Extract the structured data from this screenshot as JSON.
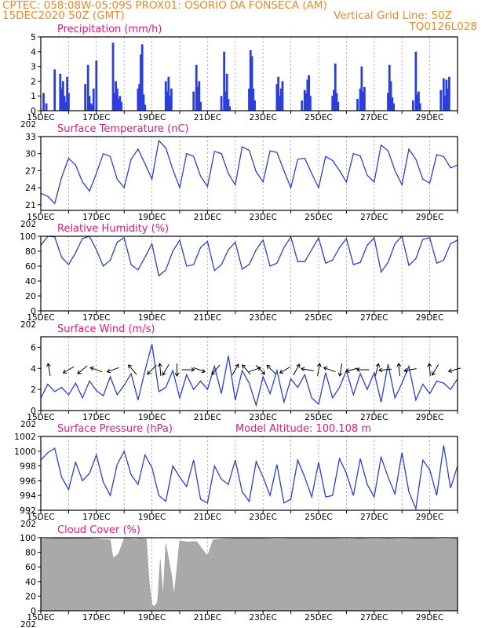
{
  "header": {
    "line1": "CPTEC:   058:08W-05:09S   PROX01: OSORIO DA FONSECA (AM)",
    "line2": "15DEC2020 50Z (GMT)",
    "grid_note": "Vertical Grid Line: 50Z",
    "code": "TQ0126L028"
  },
  "colors": {
    "title": "#e6197c",
    "header": "#f08a24",
    "series": "#2b3fe0",
    "cloud": "#a9a9a9"
  },
  "x_axis": {
    "start": "15DEC2020",
    "end": "30DEC2020",
    "ticks": [
      {
        "day": 0,
        "label": "15DEC"
      },
      {
        "day": 2,
        "label": "17DEC"
      },
      {
        "day": 4,
        "label": "19DEC"
      },
      {
        "day": 6,
        "label": "21DEC"
      },
      {
        "day": 8,
        "label": "23DEC"
      },
      {
        "day": 10,
        "label": "25DEC"
      },
      {
        "day": 12,
        "label": "27DEC"
      },
      {
        "day": 14,
        "label": "29DEC"
      }
    ],
    "year_fragment": "202"
  },
  "chart_data": [
    {
      "id": "precip",
      "type": "bar",
      "title": "Precipitation (mm/h)",
      "ylim": [
        0,
        5
      ],
      "yticks": [
        0,
        1,
        2,
        3,
        4,
        5
      ],
      "x": [
        0.1,
        0.2,
        0.5,
        0.7,
        0.75,
        0.8,
        0.85,
        0.9,
        0.95,
        1.0,
        1.6,
        1.7,
        1.75,
        1.8,
        1.85,
        1.9,
        2.0,
        2.6,
        2.65,
        2.7,
        2.75,
        2.8,
        2.85,
        2.9,
        3.5,
        3.55,
        3.6,
        3.65,
        3.7,
        3.75,
        4.5,
        4.55,
        4.6,
        4.65,
        4.7,
        5.5,
        5.6,
        5.65,
        5.7,
        5.75,
        6.5,
        6.6,
        6.65,
        6.7,
        6.75,
        6.8,
        7.5,
        7.55,
        7.6,
        7.65,
        7.7,
        8.5,
        8.55,
        8.6,
        8.65,
        8.7,
        9.4,
        9.5,
        9.55,
        9.6,
        9.65,
        9.7,
        10.5,
        10.55,
        10.6,
        10.65,
        10.7,
        11.4,
        11.5,
        11.55,
        11.6,
        11.65,
        12.5,
        12.55,
        12.6,
        12.65,
        12.7,
        13.4,
        13.5,
        13.55,
        13.6,
        13.65,
        14.4,
        14.5,
        14.55,
        14.6,
        14.65,
        14.7
      ],
      "values": [
        1.2,
        0.5,
        2.8,
        2.5,
        1.5,
        2.0,
        1.0,
        0.6,
        2.3,
        1.2,
        1.8,
        3.1,
        1.0,
        0.5,
        0.4,
        1.5,
        3.4,
        4.6,
        1.2,
        2.0,
        1.5,
        0.8,
        1.0,
        0.6,
        1.5,
        1.8,
        3.8,
        4.5,
        1.1,
        0.4,
        2.0,
        1.3,
        2.3,
        1.0,
        1.5,
        1.3,
        3.1,
        1.6,
        2.0,
        0.6,
        1.0,
        4.0,
        1.3,
        2.5,
        0.8,
        0.3,
        1.5,
        4.1,
        3.7,
        1.5,
        0.7,
        1.8,
        2.3,
        1.0,
        1.5,
        2.0,
        0.7,
        1.4,
        1.2,
        2.1,
        2.4,
        1.0,
        1.0,
        1.4,
        3.2,
        1.2,
        0.6,
        0.8,
        1.5,
        3.0,
        1.3,
        1.6,
        1.2,
        3.1,
        2.0,
        0.9,
        0.5,
        0.7,
        4.0,
        1.1,
        1.3,
        0.5,
        1.4,
        2.2,
        1.0,
        2.1,
        1.5,
        2.3
      ]
    },
    {
      "id": "temp",
      "type": "line",
      "title": "Surface Temperature (nC)",
      "ylim": [
        20,
        33
      ],
      "yticks": [
        21,
        24,
        27,
        30,
        33
      ],
      "x": [
        0,
        0.25,
        0.5,
        0.75,
        1,
        1.25,
        1.5,
        1.75,
        2,
        2.25,
        2.5,
        2.75,
        3,
        3.25,
        3.5,
        3.75,
        4,
        4.25,
        4.5,
        4.75,
        5,
        5.25,
        5.5,
        5.75,
        6,
        6.25,
        6.5,
        6.75,
        7,
        7.25,
        7.5,
        7.75,
        8,
        8.25,
        8.5,
        8.75,
        9,
        9.25,
        9.5,
        9.75,
        10,
        10.25,
        10.5,
        10.75,
        11,
        11.25,
        11.5,
        11.75,
        12,
        12.25,
        12.5,
        12.75,
        13,
        13.25,
        13.5,
        13.75,
        14,
        14.25,
        14.5,
        14.75,
        15
      ],
      "values": [
        23,
        22.5,
        21.2,
        25.8,
        29.2,
        28.0,
        25.0,
        23.4,
        26.5,
        30.0,
        29.5,
        25.5,
        24.0,
        29.0,
        30.8,
        28.2,
        25.5,
        32.3,
        31.0,
        27.2,
        24.0,
        30.0,
        29.5,
        26.0,
        24.2,
        30.4,
        30.0,
        26.5,
        24.5,
        31.2,
        30.6,
        26.8,
        25.0,
        30.5,
        30.2,
        27.0,
        24.0,
        29.0,
        29.2,
        26.5,
        24.0,
        29.5,
        28.8,
        27.0,
        25.0,
        30.0,
        29.6,
        26.2,
        25.0,
        31.5,
        30.5,
        27.0,
        24.5,
        30.8,
        29.0,
        25.5,
        24.8,
        29.8,
        29.5,
        27.5,
        28.0
      ]
    },
    {
      "id": "rh",
      "type": "line",
      "title": "Relative Humidity (%)",
      "ylim": [
        0,
        100
      ],
      "yticks": [
        0,
        20,
        40,
        60,
        80,
        100
      ],
      "x": [
        0,
        0.25,
        0.5,
        0.75,
        1,
        1.25,
        1.5,
        1.75,
        2,
        2.25,
        2.5,
        2.75,
        3,
        3.25,
        3.5,
        3.75,
        4,
        4.25,
        4.5,
        4.75,
        5,
        5.25,
        5.5,
        5.75,
        6,
        6.25,
        6.5,
        6.75,
        7,
        7.25,
        7.5,
        7.75,
        8,
        8.25,
        8.5,
        8.75,
        9,
        9.25,
        9.5,
        9.75,
        10,
        10.25,
        10.5,
        10.75,
        11,
        11.25,
        11.5,
        11.75,
        12,
        12.25,
        12.5,
        12.75,
        13,
        13.25,
        13.5,
        13.75,
        14,
        14.25,
        14.5,
        14.75,
        15
      ],
      "values": [
        88,
        100,
        99,
        72,
        62,
        78,
        97,
        100,
        82,
        60,
        68,
        92,
        98,
        62,
        55,
        72,
        90,
        47,
        55,
        80,
        95,
        60,
        62,
        85,
        93,
        54,
        62,
        82,
        92,
        56,
        62,
        82,
        95,
        60,
        64,
        85,
        99,
        66,
        66,
        82,
        98,
        64,
        68,
        85,
        97,
        62,
        65,
        88,
        98,
        52,
        65,
        90,
        100,
        61,
        70,
        96,
        98,
        64,
        68,
        90,
        95
      ]
    },
    {
      "id": "wind",
      "type": "line",
      "title": "Surface Wind (m/s)",
      "ylim": [
        0,
        7
      ],
      "yticks": [
        0,
        2,
        4,
        6
      ],
      "x": [
        0,
        0.25,
        0.5,
        0.75,
        1,
        1.25,
        1.5,
        1.75,
        2,
        2.25,
        2.5,
        2.75,
        3,
        3.25,
        3.5,
        3.75,
        4,
        4.25,
        4.5,
        4.75,
        5,
        5.25,
        5.5,
        5.75,
        6,
        6.25,
        6.5,
        6.75,
        7,
        7.25,
        7.5,
        7.75,
        8,
        8.25,
        8.5,
        8.75,
        9,
        9.25,
        9.5,
        9.75,
        10,
        10.25,
        10.5,
        10.75,
        11,
        11.25,
        11.5,
        11.75,
        12,
        12.25,
        12.5,
        12.75,
        13,
        13.25,
        13.5,
        13.75,
        14,
        14.25,
        14.5,
        14.75,
        15
      ],
      "values": [
        1.2,
        2.5,
        1.8,
        2.2,
        1.5,
        2.6,
        1.2,
        2.8,
        1.9,
        1.4,
        3.2,
        1.5,
        2.4,
        3.5,
        1.0,
        3.8,
        6.3,
        1.8,
        2.2,
        3.8,
        1.2,
        3.4,
        2.0,
        2.8,
        2.0,
        4.2,
        1.6,
        5.2,
        1.0,
        3.8,
        2.6,
        0.5,
        3.2,
        1.6,
        3.8,
        0.8,
        3.0,
        2.2,
        3.4,
        1.2,
        0.6,
        3.6,
        1.2,
        2.2,
        3.8,
        1.5,
        3.5,
        2.0,
        3.6,
        0.8,
        4.4,
        1.2,
        2.6,
        4.2,
        1.0,
        2.5,
        1.6,
        2.8,
        2.6,
        2.0,
        3.0
      ],
      "vectors": [
        [
          0.3,
          100
        ],
        [
          1.0,
          -150
        ],
        [
          1.5,
          -140
        ],
        [
          2.0,
          160
        ],
        [
          2.6,
          -160
        ],
        [
          3.3,
          130
        ],
        [
          4.0,
          -135
        ],
        [
          4.3,
          95
        ],
        [
          4.5,
          -120
        ],
        [
          4.9,
          -90
        ],
        [
          5.3,
          0
        ],
        [
          5.7,
          -20
        ],
        [
          6.3,
          -130
        ],
        [
          7.0,
          60
        ],
        [
          7.4,
          130
        ],
        [
          7.7,
          20
        ],
        [
          7.9,
          -45
        ],
        [
          8.3,
          135
        ],
        [
          8.8,
          -150
        ],
        [
          9.2,
          60
        ],
        [
          9.6,
          170
        ],
        [
          10.0,
          80
        ],
        [
          10.4,
          160
        ],
        [
          10.8,
          -100
        ],
        [
          11.2,
          -165
        ],
        [
          11.6,
          -180
        ],
        [
          12.1,
          75
        ],
        [
          12.4,
          -175
        ],
        [
          12.9,
          95
        ],
        [
          13.3,
          -170
        ],
        [
          14.0,
          95
        ],
        [
          14.2,
          -120
        ],
        [
          14.9,
          -165
        ]
      ]
    },
    {
      "id": "pressure",
      "type": "line",
      "title": "Surface Pressure (hPa)",
      "annotation": "Model Altitude: 100.108 m",
      "ylim": [
        992,
        1002
      ],
      "yticks": [
        992,
        994,
        996,
        998,
        1000,
        1002
      ],
      "x": [
        0,
        0.25,
        0.5,
        0.75,
        1,
        1.25,
        1.5,
        1.75,
        2,
        2.25,
        2.5,
        2.75,
        3,
        3.25,
        3.5,
        3.75,
        4,
        4.25,
        4.5,
        4.75,
        5,
        5.25,
        5.5,
        5.75,
        6,
        6.25,
        6.5,
        6.75,
        7,
        7.25,
        7.5,
        7.75,
        8,
        8.25,
        8.5,
        8.75,
        9,
        9.25,
        9.5,
        9.75,
        10,
        10.25,
        10.5,
        10.75,
        11,
        11.25,
        11.5,
        11.75,
        12,
        12.25,
        12.5,
        12.75,
        13,
        13.25,
        13.5,
        13.75,
        14,
        14.25,
        14.5,
        14.75,
        15
      ],
      "values": [
        998.8,
        999.8,
        1000.4,
        996.5,
        994.8,
        998.5,
        996.0,
        997.0,
        999.5,
        995.8,
        994.0,
        998.2,
        1000.0,
        996.8,
        995.5,
        999.5,
        997.8,
        994.0,
        993.2,
        998.0,
        996.5,
        995.2,
        998.8,
        993.5,
        993.0,
        998.0,
        996.2,
        995.5,
        998.8,
        994.5,
        993.2,
        998.6,
        996.5,
        994.0,
        998.2,
        993.0,
        993.5,
        998.8,
        996.5,
        993.8,
        998.5,
        993.8,
        994.0,
        999.0,
        997.0,
        994.0,
        999.0,
        995.5,
        993.8,
        999.2,
        996.5,
        994.2,
        999.8,
        994.5,
        992.2,
        998.8,
        997.5,
        994.0,
        1000.8,
        995.0,
        998.0
      ]
    },
    {
      "id": "cloud",
      "type": "bar",
      "title": "Cloud Cover (%)",
      "ylim": [
        0,
        100
      ],
      "yticks": [
        0,
        20,
        40,
        60,
        80,
        100
      ],
      "x": [
        0,
        0.5,
        1,
        1.5,
        2,
        2.5,
        2.6,
        2.8,
        3,
        3.4,
        3.6,
        3.8,
        3.9,
        4.0,
        4.1,
        4.2,
        4.3,
        4.4,
        4.5,
        4.7,
        4.8,
        5.0,
        5.3,
        5.6,
        6.0,
        6.2,
        6.5,
        7,
        7.5,
        8,
        8.5,
        9,
        9.5,
        10,
        10.5,
        11,
        11.5,
        12,
        12.5,
        13,
        13.5,
        14,
        14.5,
        15
      ],
      "values": [
        98,
        99,
        99,
        100,
        98,
        97,
        72,
        78,
        99,
        98,
        99,
        98,
        40,
        8,
        6,
        12,
        70,
        18,
        92,
        50,
        22,
        96,
        94,
        95,
        75,
        97,
        98,
        99,
        99,
        99,
        98,
        99,
        99,
        99,
        99,
        98,
        99,
        98,
        99,
        98,
        99,
        99,
        98,
        99
      ]
    }
  ]
}
